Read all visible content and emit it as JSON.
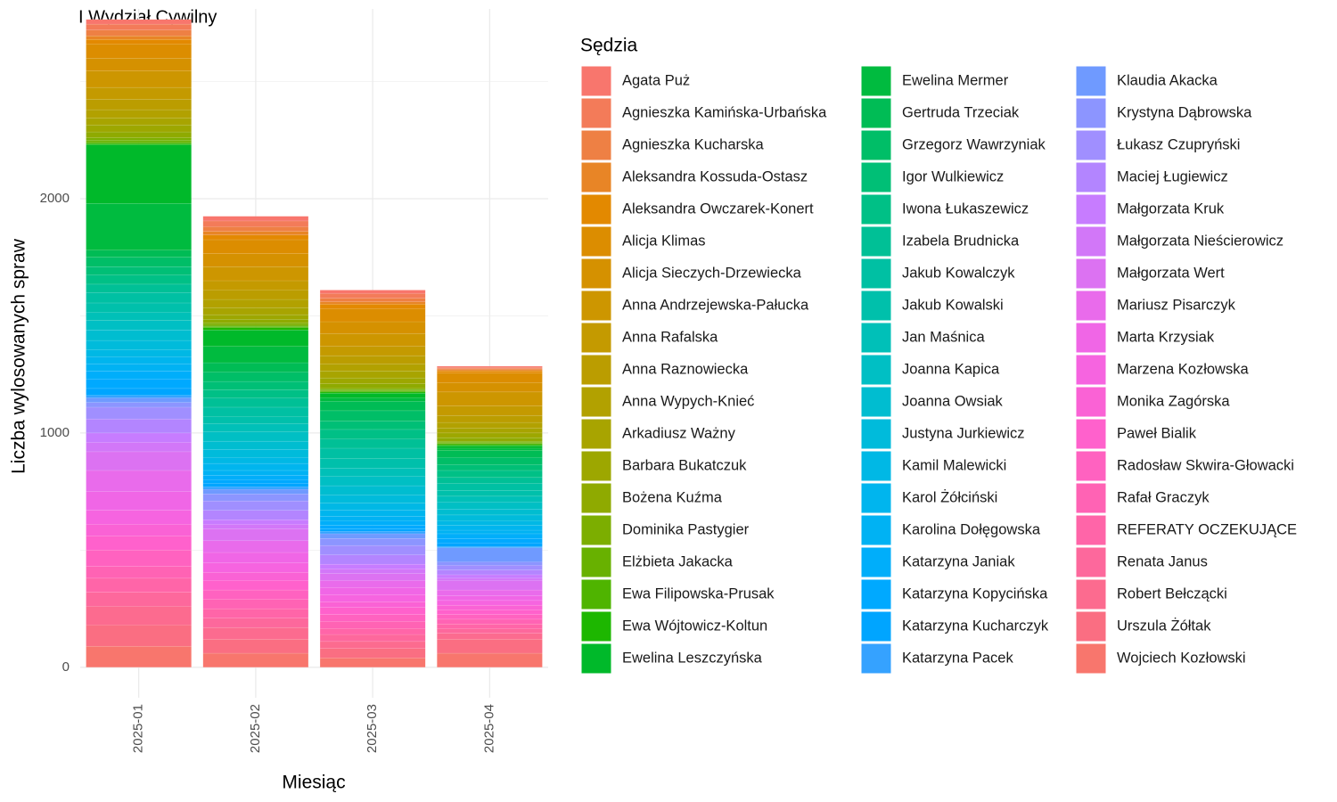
{
  "chart_data": {
    "type": "stacked_bar",
    "title": "I Wydział Cywilny",
    "x_label": "Miesiąc",
    "y_label": "Liczba wylosowanych spraw",
    "legend_title": "Sędzia",
    "categories": [
      "2025-01",
      "2025-02",
      "2025-03",
      "2025-04"
    ],
    "ylim": [
      -130,
      2810
    ],
    "yticks": [
      0,
      1000,
      2000
    ],
    "y_minor_ticks": [
      500,
      1500,
      2500
    ],
    "grid": true,
    "legend_position": "right",
    "series": [
      {
        "name": "Agata Puż",
        "color": "#F8766D",
        "values": [
          20,
          20,
          15,
          5
        ]
      },
      {
        "name": "Agnieszka Kamińska-Urbańska",
        "color": "#F37B59",
        "values": [
          25,
          25,
          20,
          5
        ]
      },
      {
        "name": "Agnieszka Kucharska",
        "color": "#EE8044",
        "values": [
          25,
          20,
          15,
          5
        ]
      },
      {
        "name": "Aleksandra Kossuda-Ostasz",
        "color": "#E88526",
        "values": [
          15,
          15,
          10,
          5
        ]
      },
      {
        "name": "Aleksandra Owczarek-Konert",
        "color": "#E38900",
        "values": [
          20,
          20,
          20,
          10
        ]
      },
      {
        "name": "Alicja Klimas",
        "color": "#DC8D00",
        "values": [
          60,
          60,
          55,
          40
        ]
      },
      {
        "name": "Alicja Sieczych-Drzewiecka",
        "color": "#D59100",
        "values": [
          55,
          55,
          50,
          40
        ]
      },
      {
        "name": "Anna Andrzejewska-Pałucka",
        "color": "#CD9600",
        "values": [
          70,
          60,
          55,
          60
        ]
      },
      {
        "name": "Anna Rafalska",
        "color": "#C49A00",
        "values": [
          50,
          40,
          40,
          40
        ]
      },
      {
        "name": "Anna Raznowiecka",
        "color": "#BB9D00",
        "values": [
          45,
          40,
          35,
          30
        ]
      },
      {
        "name": "Anna Wypych-Knieć",
        "color": "#B2A100",
        "values": [
          35,
          35,
          30,
          25
        ]
      },
      {
        "name": "Arkadiusz Ważny",
        "color": "#A8A400",
        "values": [
          30,
          30,
          30,
          20
        ]
      },
      {
        "name": "Barbara Bukatczuk",
        "color": "#9DA700",
        "values": [
          30,
          20,
          25,
          20
        ]
      },
      {
        "name": "Bożena Kuźma",
        "color": "#8FAA00",
        "values": [
          25,
          15,
          20,
          15
        ]
      },
      {
        "name": "Dominika Pastygier",
        "color": "#7CAE00",
        "values": [
          10,
          10,
          5,
          5
        ]
      },
      {
        "name": "Elżbieta Jakacka",
        "color": "#68B100",
        "values": [
          10,
          5,
          5,
          5
        ]
      },
      {
        "name": "Ewa Filipowska-Prusak",
        "color": "#4FB400",
        "values": [
          5,
          5,
          5,
          5
        ]
      },
      {
        "name": "Ewa Wójtowicz-Koltun",
        "color": "#1DB700",
        "values": [
          5,
          10,
          5,
          5
        ]
      },
      {
        "name": "Ewelina Leszczyńska",
        "color": "#00B92A",
        "values": [
          250,
          70,
          20,
          10
        ]
      },
      {
        "name": "Ewelina Mermer",
        "color": "#00BB3F",
        "values": [
          200,
          70,
          15,
          10
        ]
      },
      {
        "name": "Gertruda Trzeciak",
        "color": "#00BC55",
        "values": [
          30,
          40,
          40,
          30
        ]
      },
      {
        "name": "Grzegorz Wawrzyniak",
        "color": "#00BE67",
        "values": [
          40,
          40,
          45,
          30
        ]
      },
      {
        "name": "Igor Wulkiewicz",
        "color": "#00BF76",
        "values": [
          35,
          35,
          35,
          25
        ]
      },
      {
        "name": "Iwona Łukaszewicz",
        "color": "#00C086",
        "values": [
          40,
          35,
          40,
          30
        ]
      },
      {
        "name": "Izabela Brudnicka",
        "color": "#00C096",
        "values": [
          35,
          40,
          40,
          25
        ]
      },
      {
        "name": "Jakub Kowalczyk",
        "color": "#00C0A3",
        "values": [
          45,
          40,
          45,
          30
        ]
      },
      {
        "name": "Jakub Kowalski",
        "color": "#00C0AB",
        "values": [
          40,
          30,
          40,
          25
        ]
      },
      {
        "name": "Jan Maśnica",
        "color": "#00C0B8",
        "values": [
          35,
          35,
          35,
          25
        ]
      },
      {
        "name": "Joanna Kapica",
        "color": "#00BFC4",
        "values": [
          40,
          40,
          40,
          30
        ]
      },
      {
        "name": "Joanna Owsiak",
        "color": "#00BDD0",
        "values": [
          45,
          35,
          40,
          25
        ]
      },
      {
        "name": "Justyna Jurkiewicz",
        "color": "#00BBDB",
        "values": [
          40,
          35,
          35,
          25
        ]
      },
      {
        "name": "Kamil Malewicki",
        "color": "#00B8E5",
        "values": [
          30,
          25,
          30,
          20
        ]
      },
      {
        "name": "Karol Żółciński",
        "color": "#00B5EE",
        "values": [
          30,
          30,
          25,
          20
        ]
      },
      {
        "name": "Karolina Dołęgowska",
        "color": "#00B2F3",
        "values": [
          30,
          20,
          20,
          15
        ]
      },
      {
        "name": "Katarzyna Janiak",
        "color": "#00AEFA",
        "values": [
          35,
          20,
          20,
          20
        ]
      },
      {
        "name": "Katarzyna Kopycińska",
        "color": "#00A9FF",
        "values": [
          40,
          15,
          15,
          20
        ]
      },
      {
        "name": "Katarzyna Kucharczyk",
        "color": "#00A5FF",
        "values": [
          30,
          15,
          10,
          15
        ]
      },
      {
        "name": "Katarzyna Pacek",
        "color": "#35A2FF",
        "values": [
          10,
          10,
          10,
          5
        ]
      },
      {
        "name": "Klaudia Akacka",
        "color": "#6F9AFF",
        "values": [
          20,
          20,
          20,
          60
        ]
      },
      {
        "name": "Krystyna Dąbrowska",
        "color": "#8C95FF",
        "values": [
          20,
          30,
          30,
          15
        ]
      },
      {
        "name": "Łukasz Czupryński",
        "color": "#A08FFF",
        "values": [
          50,
          40,
          40,
          20
        ]
      },
      {
        "name": "Maciej Ługiewicz",
        "color": "#B385FF",
        "values": [
          60,
          40,
          40,
          20
        ]
      },
      {
        "name": "Małgorzata Kruk",
        "color": "#C77CFF",
        "values": [
          40,
          20,
          20,
          15
        ]
      },
      {
        "name": "Małgorzata Nieścierowicz",
        "color": "#D277F8",
        "values": [
          40,
          20,
          20,
          10
        ]
      },
      {
        "name": "Małgorzata Wert",
        "color": "#DC72F2",
        "values": [
          80,
          50,
          30,
          40
        ]
      },
      {
        "name": "Mariusz Pisarczyk",
        "color": "#E96BEB",
        "values": [
          90,
          50,
          30,
          25
        ]
      },
      {
        "name": "Marta Krzysiak",
        "color": "#F066E6",
        "values": [
          80,
          45,
          30,
          20
        ]
      },
      {
        "name": "Marzena Kozłowska",
        "color": "#F664E0",
        "values": [
          60,
          40,
          30,
          20
        ]
      },
      {
        "name": "Monika Zagórska",
        "color": "#FA62D5",
        "values": [
          50,
          35,
          25,
          20
        ]
      },
      {
        "name": "Paweł Bialik",
        "color": "#FF61CC",
        "values": [
          60,
          40,
          30,
          20
        ]
      },
      {
        "name": "Radosław Skwira-Głowacki",
        "color": "#FF62C0",
        "values": [
          70,
          40,
          30,
          20
        ]
      },
      {
        "name": "Rafał Graczyk",
        "color": "#FF63B4",
        "values": [
          50,
          40,
          30,
          20
        ]
      },
      {
        "name": "REFERATY OCZEKUJĄCE",
        "color": "#FF65A8",
        "values": [
          60,
          40,
          25,
          20
        ]
      },
      {
        "name": "Renata Janus",
        "color": "#FD689C",
        "values": [
          60,
          40,
          30,
          20
        ]
      },
      {
        "name": "Robert Bełczącki",
        "color": "#FC6B8F",
        "values": [
          80,
          50,
          30,
          25
        ]
      },
      {
        "name": "Urszula Żółtak",
        "color": "#FA6E82",
        "values": [
          90,
          60,
          40,
          60
        ]
      },
      {
        "name": "Wojciech Kozłowski",
        "color": "#F8766D",
        "values": [
          90,
          60,
          40,
          60
        ]
      }
    ]
  }
}
